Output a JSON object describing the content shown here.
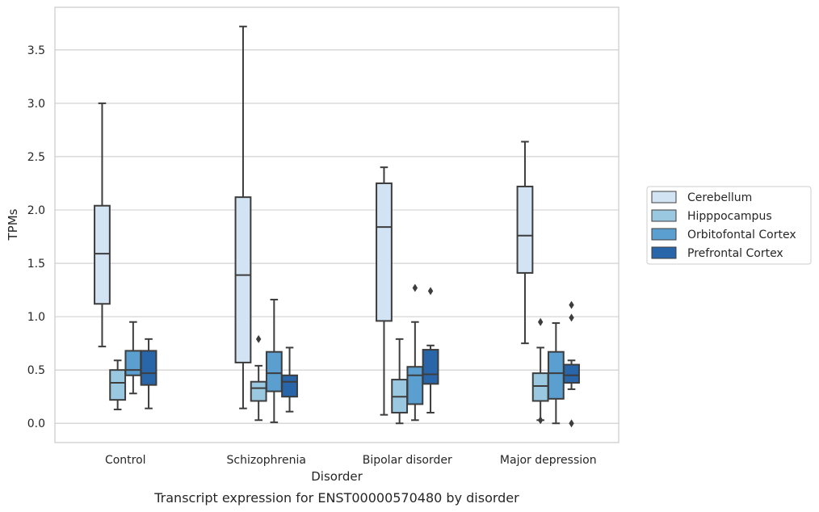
{
  "chart_data": {
    "type": "box",
    "caption": "Transcript expression for ENST00000570480 by disorder",
    "xlabel": "Disorder",
    "ylabel": "TPMs",
    "ylim": [
      -0.18,
      3.9
    ],
    "yticks": [
      0.0,
      0.5,
      1.0,
      1.5,
      2.0,
      2.5,
      3.0,
      3.5
    ],
    "ytick_labels": [
      "0.0",
      "0.5",
      "1.0",
      "1.5",
      "2.0",
      "2.5",
      "3.0",
      "3.5"
    ],
    "grid": "horizontal",
    "legend_position": "right",
    "categories": [
      "Control",
      "Schizophrenia",
      "Bipolar disorder",
      "Major depression"
    ],
    "series": [
      {
        "name": "Cerebellum",
        "color": "#d2e3f3",
        "boxes": [
          {
            "whislo": 0.72,
            "q1": 1.12,
            "med": 1.59,
            "q3": 2.04,
            "whishi": 3.0,
            "fliers": []
          },
          {
            "whislo": 0.14,
            "q1": 0.57,
            "med": 1.39,
            "q3": 2.12,
            "whishi": 3.72,
            "fliers": []
          },
          {
            "whislo": 0.08,
            "q1": 0.96,
            "med": 1.84,
            "q3": 2.25,
            "whishi": 2.4,
            "fliers": []
          },
          {
            "whislo": 0.75,
            "q1": 1.41,
            "med": 1.76,
            "q3": 2.22,
            "whishi": 2.64,
            "fliers": []
          }
        ]
      },
      {
        "name": "Hipppocampus",
        "color": "#9ac8e0",
        "boxes": [
          {
            "whislo": 0.13,
            "q1": 0.22,
            "med": 0.38,
            "q3": 0.5,
            "whishi": 0.59,
            "fliers": []
          },
          {
            "whislo": 0.03,
            "q1": 0.21,
            "med": 0.33,
            "q3": 0.39,
            "whishi": 0.54,
            "fliers": [
              0.79
            ]
          },
          {
            "whislo": 0.0,
            "q1": 0.1,
            "med": 0.25,
            "q3": 0.41,
            "whishi": 0.79,
            "fliers": []
          },
          {
            "whislo": 0.03,
            "q1": 0.21,
            "med": 0.35,
            "q3": 0.47,
            "whishi": 0.71,
            "fliers": [
              0.03,
              0.95
            ]
          }
        ]
      },
      {
        "name": "Orbitofontal Cortex",
        "color": "#5a9fcf",
        "boxes": [
          {
            "whislo": 0.28,
            "q1": 0.45,
            "med": 0.5,
            "q3": 0.68,
            "whishi": 0.95,
            "fliers": []
          },
          {
            "whislo": 0.01,
            "q1": 0.3,
            "med": 0.47,
            "q3": 0.67,
            "whishi": 1.16,
            "fliers": []
          },
          {
            "whislo": 0.03,
            "q1": 0.18,
            "med": 0.45,
            "q3": 0.53,
            "whishi": 0.95,
            "fliers": [
              1.27
            ]
          },
          {
            "whislo": 0.0,
            "q1": 0.23,
            "med": 0.47,
            "q3": 0.67,
            "whishi": 0.94,
            "fliers": []
          }
        ]
      },
      {
        "name": "Prefrontal Cortex",
        "color": "#2865a9",
        "boxes": [
          {
            "whislo": 0.14,
            "q1": 0.36,
            "med": 0.47,
            "q3": 0.68,
            "whishi": 0.79,
            "fliers": []
          },
          {
            "whislo": 0.11,
            "q1": 0.25,
            "med": 0.39,
            "q3": 0.45,
            "whishi": 0.71,
            "fliers": []
          },
          {
            "whislo": 0.1,
            "q1": 0.37,
            "med": 0.46,
            "q3": 0.69,
            "whishi": 0.73,
            "fliers": [
              1.24
            ]
          },
          {
            "whislo": 0.32,
            "q1": 0.38,
            "med": 0.45,
            "q3": 0.55,
            "whishi": 0.59,
            "fliers": [
              0.0,
              0.99,
              1.11
            ]
          }
        ]
      }
    ]
  }
}
